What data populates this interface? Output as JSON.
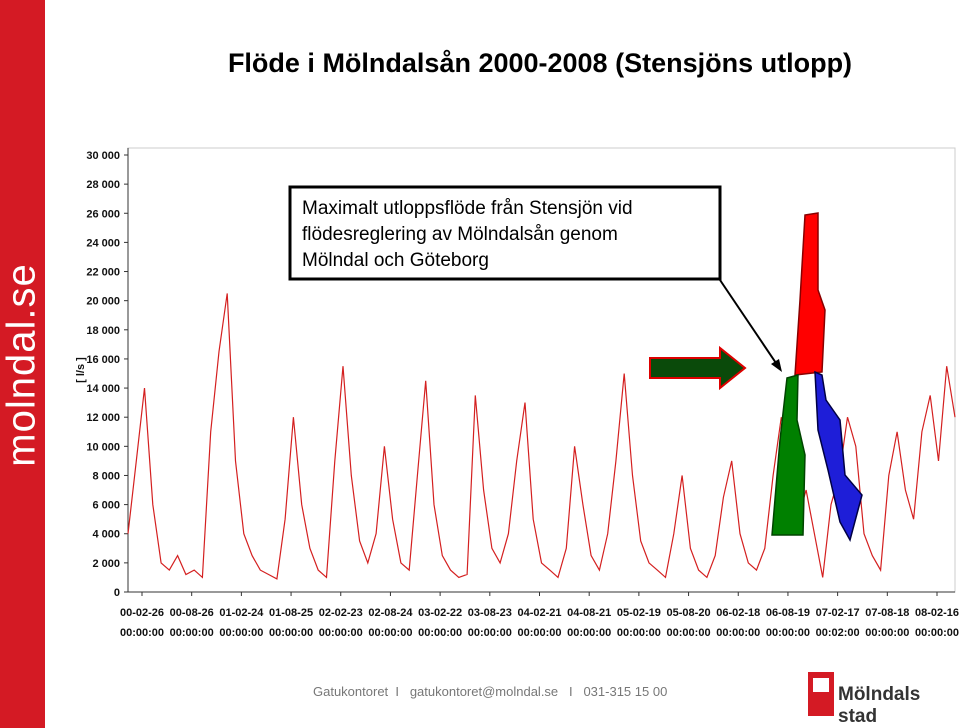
{
  "slide": {
    "title": "Flöde i Mölndalsån 2000-2008 (Stensjöns utlopp)",
    "side_text": "molndal.se",
    "annotation": [
      "Maximalt utloppsflöde från Stensjön vid",
      "flödesreglering av Mölndalsån genom",
      "Mölndal och Göteborg"
    ],
    "footer": "Gatukontoret  I   gatukontoret@molndal.se   I   031-315 15 00",
    "logo": "Mölndals stad"
  },
  "chart_data": {
    "type": "line",
    "y_label": "[ l/s ]",
    "ylim": [
      0,
      30000
    ],
    "yticks": [
      0,
      {
        "value": 2000,
        "label": "2 000"
      },
      {
        "value": 4000,
        "label": "4 000"
      },
      {
        "value": 6000,
        "label": "6 000"
      },
      {
        "value": 8000,
        "label": "8 000"
      },
      {
        "value": 10000,
        "label": "10 000"
      },
      {
        "value": 12000,
        "label": "12 000"
      },
      {
        "value": 14000,
        "label": "14 000"
      },
      {
        "value": 16000,
        "label": "16 000"
      },
      {
        "value": 18000,
        "label": "18 000"
      },
      {
        "value": 20000,
        "label": "20 000"
      },
      {
        "value": 22000,
        "label": "22 000"
      },
      {
        "value": 24000,
        "label": "24 000"
      },
      {
        "value": 26000,
        "label": "26 000"
      },
      {
        "value": 28000,
        "label": "28 000"
      },
      {
        "value": 30000,
        "label": "30 000"
      }
    ],
    "xticks": [
      {
        "date": "00-02-26",
        "time": "00:00:00"
      },
      {
        "date": "00-08-26",
        "time": "00:00:00"
      },
      {
        "date": "01-02-24",
        "time": "00:00:00"
      },
      {
        "date": "01-08-25",
        "time": "00:00:00"
      },
      {
        "date": "02-02-23",
        "time": "00:00:00"
      },
      {
        "date": "02-08-24",
        "time": "00:00:00"
      },
      {
        "date": "03-02-22",
        "time": "00:00:00"
      },
      {
        "date": "03-08-23",
        "time": "00:00:00"
      },
      {
        "date": "04-02-21",
        "time": "00:00:00"
      },
      {
        "date": "04-08-21",
        "time": "00:00:00"
      },
      {
        "date": "05-02-19",
        "time": "00:00:00"
      },
      {
        "date": "05-08-20",
        "time": "00:00:00"
      },
      {
        "date": "06-02-18",
        "time": "00:00:00"
      },
      {
        "date": "06-08-19",
        "time": "00:00:00"
      },
      {
        "date": "07-02-17",
        "time": "00:02:00"
      },
      {
        "date": "07-08-18",
        "time": "00:00:00"
      },
      {
        "date": "08-02-16",
        "time": "00:00:00"
      }
    ],
    "color": "#d42020",
    "values": [
      4000,
      9000,
      14000,
      6000,
      2000,
      1500,
      2500,
      1200,
      1500,
      1000,
      11000,
      16500,
      20500,
      9000,
      4000,
      2500,
      1500,
      1200,
      900,
      5000,
      12000,
      6000,
      3000,
      1500,
      1000,
      9000,
      15500,
      8000,
      3500,
      2000,
      4000,
      10000,
      5000,
      2000,
      1500,
      8000,
      14500,
      6000,
      2500,
      1500,
      1000,
      1200,
      13500,
      7000,
      3000,
      2000,
      4000,
      9000,
      13000,
      5000,
      2000,
      1500,
      1000,
      3000,
      10000,
      6000,
      2500,
      1500,
      4000,
      9000,
      15000,
      8000,
      3500,
      2000,
      1500,
      1000,
      4000,
      8000,
      3000,
      1500,
      1000,
      2500,
      6500,
      9000,
      4000,
      2000,
      1500,
      3000,
      8000,
      12000,
      9000,
      5000,
      7000,
      4000,
      1000,
      6000,
      8000,
      12000,
      10000,
      4000,
      2500,
      1500,
      8000,
      11000,
      7000,
      5000,
      11000,
      13500,
      9000,
      15500,
      12000
    ]
  }
}
